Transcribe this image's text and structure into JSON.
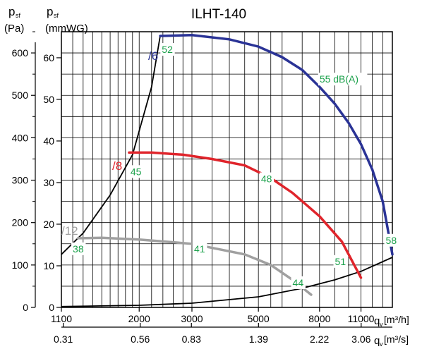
{
  "chart_data": {
    "type": "line",
    "title": "ILHT-140",
    "y_axis_left": {
      "label_symbol": "p",
      "label_sub": "sf",
      "unit": "(Pa)",
      "ticks": [
        "0",
        "100",
        "200",
        "300",
        "400",
        "500",
        "600"
      ],
      "range": [
        0,
        650
      ]
    },
    "y_axis_inner": {
      "label_symbol": "p",
      "label_sub": "sf",
      "unit": "(mmWG)",
      "ticks": [
        "0",
        "10",
        "20",
        "30",
        "40",
        "50",
        "60"
      ]
    },
    "x_axis_top": {
      "label_symbol": "q",
      "label_sub": "v",
      "unit": "[m³/h]",
      "scale": "log",
      "range": [
        1100,
        14000
      ],
      "ticks": [
        "1100",
        "2000",
        "3000",
        "5000",
        "8000",
        "11000"
      ]
    },
    "x_axis_bottom": {
      "label_symbol": "q",
      "label_sub": "v",
      "unit": "[m³/s]",
      "ticks": [
        "0.31",
        "0.56",
        "0.83",
        "1.39",
        "2.22",
        "3.06"
      ]
    },
    "series": [
      {
        "name": "/6",
        "color": "#2a3396",
        "points": [
          [
            2350,
            640
          ],
          [
            3000,
            642
          ],
          [
            4000,
            632
          ],
          [
            5000,
            615
          ],
          [
            6000,
            590
          ],
          [
            7000,
            560
          ],
          [
            8000,
            520
          ],
          [
            9000,
            480
          ],
          [
            10000,
            435
          ],
          [
            11000,
            385
          ],
          [
            12000,
            325
          ],
          [
            13000,
            250
          ],
          [
            14000,
            125
          ]
        ]
      },
      {
        "name": "/8",
        "color": "#e0242b",
        "points": [
          [
            1850,
            365
          ],
          [
            2200,
            365
          ],
          [
            2800,
            360
          ],
          [
            3500,
            350
          ],
          [
            4500,
            335
          ],
          [
            5500,
            305
          ],
          [
            6500,
            270
          ],
          [
            8000,
            215
          ],
          [
            9500,
            155
          ],
          [
            11000,
            70
          ]
        ]
      },
      {
        "name": "/12",
        "color": "#a0a0a0",
        "points": [
          [
            1250,
            163
          ],
          [
            1500,
            164
          ],
          [
            2000,
            160
          ],
          [
            3000,
            150
          ],
          [
            4500,
            125
          ],
          [
            5500,
            100
          ],
          [
            6500,
            65
          ],
          [
            7500,
            30
          ]
        ]
      }
    ],
    "system_curves": [
      {
        "points": [
          [
            1100,
            125
          ],
          [
            1300,
            175
          ],
          [
            1600,
            265
          ],
          [
            1900,
            360
          ],
          [
            2200,
            520
          ],
          [
            2350,
            640
          ]
        ]
      },
      {
        "points": [
          [
            1100,
            2
          ],
          [
            2000,
            5
          ],
          [
            3000,
            10
          ],
          [
            5000,
            25
          ],
          [
            7000,
            45
          ],
          [
            9000,
            65
          ],
          [
            11000,
            85
          ],
          [
            14000,
            118
          ]
        ]
      }
    ],
    "sound_labels": [
      "52",
      "55 dB(A)",
      "45",
      "48",
      "38",
      "41",
      "44",
      "51",
      "58"
    ],
    "label_color": "#1aa04a",
    "grid": true
  }
}
